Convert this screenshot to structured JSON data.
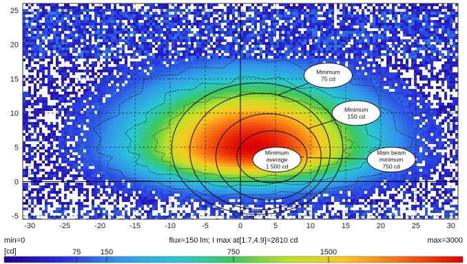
{
  "chart_data": {
    "type": "heatmap",
    "x_ticks": [
      "-30",
      "-25",
      "-20",
      "-15",
      "-10",
      "-5",
      "0",
      "5",
      "10",
      "15",
      "20",
      "25",
      "30"
    ],
    "y_ticks": [
      "25",
      "20",
      "15",
      "10",
      "5",
      "0",
      "-5"
    ],
    "xlim": [
      -31,
      31
    ],
    "ylim": [
      -5.5,
      26
    ],
    "min_label": "min=0",
    "max_label": "max=3000",
    "flux_label": "flux=150 lm; I max at[1.7,4.9]=2810 cd",
    "unit_label": "[cd]",
    "scale_labels": [
      {
        "text": "75",
        "value": 75
      },
      {
        "text": "150",
        "value": 150
      },
      {
        "text": "750",
        "value": 750
      },
      {
        "text": "1500",
        "value": 1500
      }
    ],
    "scale_max": 3000,
    "hotspot": {
      "x": 1.7,
      "y": 4.9,
      "intensity": 2810
    },
    "spread": {
      "sx": 19,
      "sy_up": 11,
      "sy_down": 6
    },
    "contours": [
      {
        "label": "75 cd",
        "rx": 12.2,
        "ry": 9.6,
        "cx": 2.4,
        "cy": 4.8
      },
      {
        "label": "150 cd",
        "rx": 10.0,
        "ry": 8.5,
        "cx": 2.8,
        "cy": 4.4
      },
      {
        "label": "750 cd",
        "rx": 7.5,
        "ry": 6.3,
        "cx": 4.0,
        "cy": 3.6
      },
      {
        "label": "1 500 cd",
        "rx": 5.0,
        "ry": 3.8,
        "cx": 4.5,
        "cy": 3.6
      }
    ],
    "callouts": [
      {
        "lines": [
          "Minimum",
          "75 cd"
        ],
        "bx": 12.5,
        "by": 15.5,
        "tx": 5.3,
        "ty": 12.6
      },
      {
        "lines": [
          "Minimum",
          "150 cd"
        ],
        "bx": 16.5,
        "by": 10.0,
        "tx": 9.5,
        "ty": 7.7
      },
      {
        "lines": [
          "Main beam",
          "minimum",
          "750 cd"
        ],
        "bx": 21.5,
        "by": 3.2,
        "tx": 9.6,
        "ty": 3.5
      },
      {
        "lines": [
          "Minimum",
          "average",
          "1 500 cd"
        ],
        "bx": 5.2,
        "by": 3.2,
        "tx": 9.0,
        "ty": 3.6
      }
    ]
  }
}
